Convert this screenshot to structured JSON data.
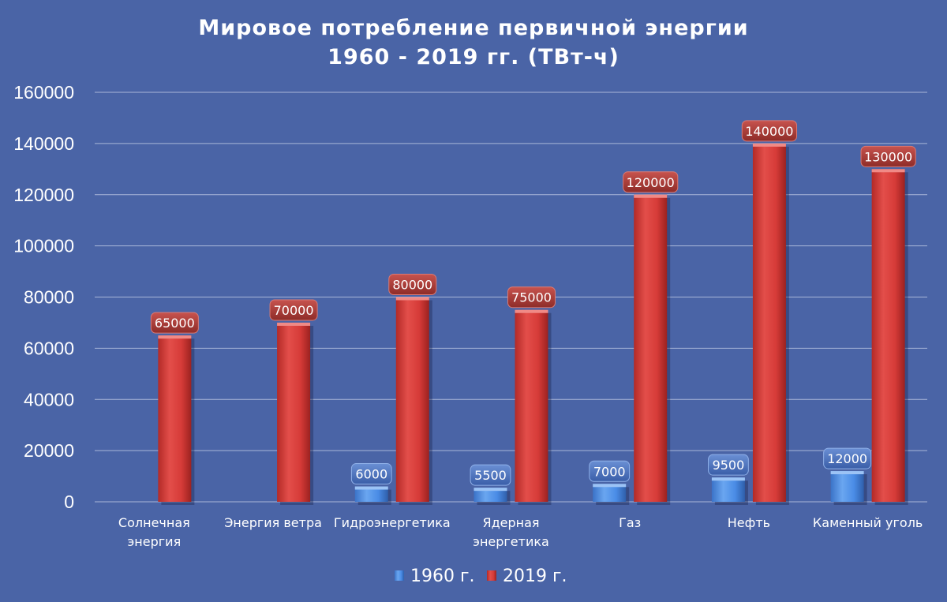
{
  "chart_data": {
    "type": "bar",
    "title": "Мировое потребление первичной энергии",
    "subtitle": "1960 - 2019 гг. (ТВт-ч)",
    "categories": [
      [
        "Солнечная",
        "энергия"
      ],
      [
        "Энергия ветра"
      ],
      [
        "Гидроэнергетика"
      ],
      [
        "Ядерная",
        "энергетика"
      ],
      [
        "Газ"
      ],
      [
        "Нефть"
      ],
      [
        "Каменный уголь"
      ]
    ],
    "series": [
      {
        "name": "1960 г.",
        "values": [
          0,
          0,
          6000,
          5500,
          7000,
          9500,
          12000
        ],
        "labels": [
          "",
          "",
          "6000",
          "5500",
          "7000",
          "9500",
          "12000"
        ],
        "color": "#4a8ce6"
      },
      {
        "name": "2019 г.",
        "values": [
          65000,
          70000,
          80000,
          75000,
          120000,
          140000,
          130000
        ],
        "labels": [
          "65000",
          "70000",
          "80000",
          "75000",
          "120000",
          "140000",
          "130000"
        ],
        "color": "#d63b38"
      }
    ],
    "yticks": [
      "0",
      "20000",
      "40000",
      "60000",
      "80000",
      "100000",
      "120000",
      "140000",
      "160000"
    ],
    "ylim": [
      0,
      160000
    ],
    "grid": true,
    "legend_position": "bottom"
  }
}
